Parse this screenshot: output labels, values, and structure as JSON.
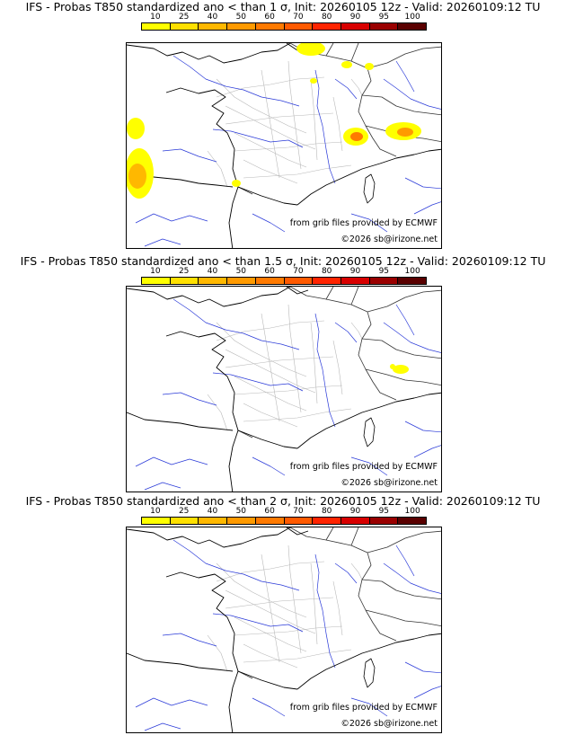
{
  "scale": {
    "ticks": [
      "10",
      "25",
      "40",
      "50",
      "60",
      "70",
      "80",
      "90",
      "95",
      "100"
    ],
    "colors": [
      "#ffff00",
      "#ffe000",
      "#ffb800",
      "#ff9a00",
      "#ff7a00",
      "#ff5a00",
      "#ff2400",
      "#d80000",
      "#9a0000",
      "#5a0000"
    ]
  },
  "panels": [
    {
      "title": "IFS - Probas T850  standardized ano < than 1 σ, Init: 20260105 12z - Valid: 20260109:12 TU",
      "credit_source": "from grib files provided by ECMWF",
      "credit_copyright": "©2026 sb@irizone.net"
    },
    {
      "title": "IFS - Probas T850  standardized ano < than 1.5 σ, Init: 20260105 12z - Valid: 20260109:12 TU",
      "credit_source": "from grib files provided by ECMWF",
      "credit_copyright": "©2026 sb@irizone.net"
    },
    {
      "title": "IFS - Probas T850  standardized ano < than 2 σ, Init: 20260105 12z - Valid: 20260109:12 TU",
      "credit_source": "from grib files provided by ECMWF",
      "credit_copyright": "©2026 sb@irizone.net"
    }
  ]
}
